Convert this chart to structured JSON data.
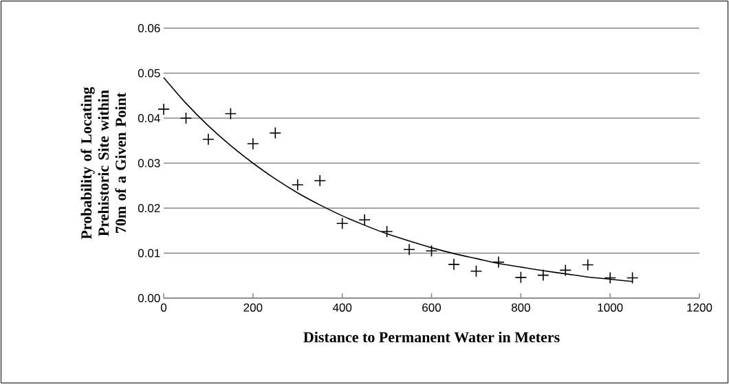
{
  "chart_data": {
    "type": "scatter",
    "xlabel": "Distance to Permanent Water in Meters",
    "ylabel": "Probability of Locating Prehistoric Site within 70m of a Given Point",
    "x": [
      0,
      50,
      100,
      150,
      200,
      250,
      300,
      350,
      400,
      450,
      500,
      550,
      600,
      650,
      700,
      750,
      800,
      850,
      900,
      950,
      1000,
      1050
    ],
    "series": [
      {
        "color": "#000000",
        "marker": "cross",
        "values": [
          0.042,
          0.04,
          0.0353,
          0.041,
          0.0343,
          0.0367,
          0.0252,
          0.0261,
          0.0166,
          0.0174,
          0.0148,
          0.0108,
          0.0105,
          0.0075,
          0.006,
          0.008,
          0.0046,
          0.0051,
          0.0062,
          0.0074,
          0.0045,
          0.0045
        ]
      },
      {
        "type": "line",
        "color": "#000000",
        "x": [
          0,
          50,
          100,
          150,
          200,
          250,
          300,
          350,
          400,
          450,
          500,
          550,
          600,
          650,
          700,
          750,
          800,
          850,
          900,
          950,
          1000,
          1050
        ],
        "values": [
          0.049,
          0.0433,
          0.0383,
          0.0339,
          0.03,
          0.0265,
          0.0234,
          0.0207,
          0.0183,
          0.0162,
          0.0143,
          0.0127,
          0.0112,
          0.0099,
          0.0088,
          0.0077,
          0.0069,
          0.0061,
          0.0054,
          0.0047,
          0.0042,
          0.0037
        ]
      }
    ],
    "xlim": [
      0,
      1200
    ],
    "xticks": [
      0,
      200,
      400,
      600,
      800,
      1000,
      1200
    ],
    "ylim": [
      0,
      0.06
    ],
    "yticks": [
      {
        "value": 0,
        "label": "0.00"
      },
      {
        "value": 0.01,
        "label": "0.01"
      },
      {
        "value": 0.02,
        "label": "0.02"
      },
      {
        "value": 0.03,
        "label": "0.03"
      },
      {
        "value": 0.04,
        "label": "0.04"
      },
      {
        "value": 0.05,
        "label": "0.05"
      },
      {
        "value": 0.06,
        "label": "0.06"
      }
    ],
    "grid": "y"
  }
}
